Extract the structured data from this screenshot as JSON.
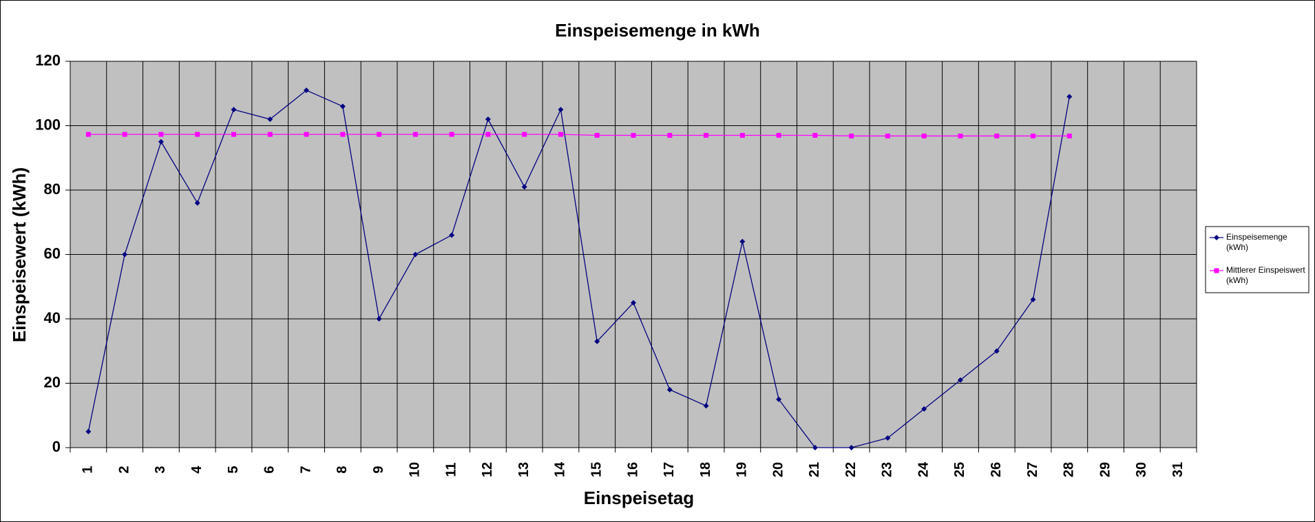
{
  "chart_data": {
    "type": "line",
    "title": "Einspeisemenge in kWh",
    "x_label": "Einspeisetag",
    "y_label": "Einspeisewert  (kWh)",
    "categories": [
      "1",
      "2",
      "3",
      "4",
      "5",
      "6",
      "7",
      "8",
      "9",
      "10",
      "11",
      "12",
      "13",
      "14",
      "15",
      "16",
      "17",
      "18",
      "19",
      "20",
      "21",
      "22",
      "23",
      "24",
      "25",
      "26",
      "27",
      "28",
      "29",
      "30",
      "31"
    ],
    "series": [
      {
        "name": "Einspeisemenge (kWh)",
        "color": "#000080",
        "marker": "diamond",
        "values": [
          5,
          60,
          95,
          76,
          105,
          102,
          111,
          106,
          40,
          60,
          66,
          102,
          81,
          105,
          33,
          45,
          18,
          13,
          64,
          15,
          0,
          0,
          3,
          12,
          21,
          30,
          46,
          109,
          null,
          null,
          null
        ]
      },
      {
        "name": "Mittlerer Einspeiswert (kWh)",
        "color": "#ff00ff",
        "marker": "square",
        "values": [
          97.3,
          97.3,
          97.3,
          97.3,
          97.3,
          97.3,
          97.3,
          97.3,
          97.3,
          97.3,
          97.3,
          97.3,
          97.3,
          97.3,
          97.0,
          97.0,
          97.0,
          97.0,
          97.0,
          97.0,
          97.0,
          96.8,
          96.8,
          96.8,
          96.8,
          96.8,
          96.8,
          96.8,
          null,
          null,
          null
        ]
      }
    ],
    "ylim": [
      0,
      120
    ],
    "yticks": [
      0,
      20,
      40,
      60,
      80,
      100,
      120
    ],
    "grid": true,
    "legend": "right"
  }
}
